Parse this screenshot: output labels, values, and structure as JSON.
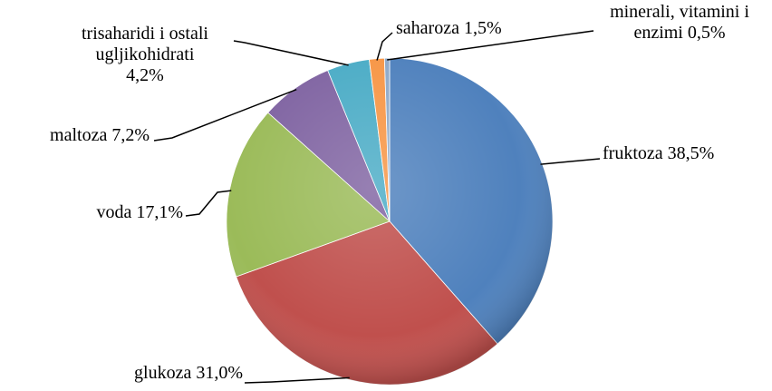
{
  "chart_data": {
    "type": "pie",
    "categories": [
      "fruktoza",
      "glukoza",
      "voda",
      "maltoza",
      "trisaharidi i ostali ugljikohidrati",
      "saharoza",
      "minerali, vitamini i enzimi"
    ],
    "values": [
      38.5,
      31.0,
      17.1,
      7.2,
      4.2,
      1.5,
      0.5
    ],
    "value_labels": [
      "38,5%",
      "31,0%",
      "17,1%",
      "7,2%",
      "4,2%",
      "1,5%",
      "0,5%"
    ],
    "colors": [
      "#4f81bd",
      "#c0504d",
      "#9bbb59",
      "#8064a2",
      "#4bacc6",
      "#f79646",
      "#8ea9c8"
    ]
  }
}
